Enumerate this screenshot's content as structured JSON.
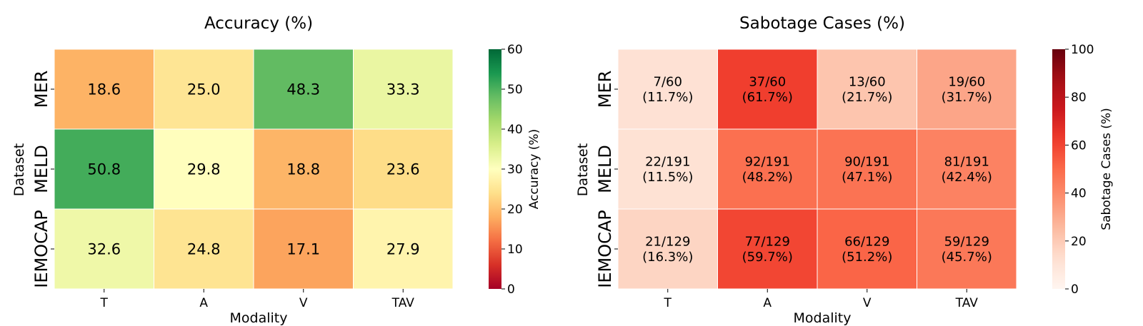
{
  "chart_data": [
    {
      "type": "heatmap",
      "title": "Accuracy (%)",
      "xlabel": "Modality",
      "ylabel": "Dataset",
      "x_categories": [
        "T",
        "A",
        "V",
        "TAV"
      ],
      "y_categories": [
        "MER",
        "MELD",
        "IEMOCAP"
      ],
      "values": [
        [
          18.6,
          25.0,
          48.3,
          33.3
        ],
        [
          50.8,
          29.8,
          18.8,
          23.6
        ],
        [
          32.6,
          24.8,
          17.1,
          27.9
        ]
      ],
      "cell_labels": [
        [
          "18.6",
          "25.0",
          "48.3",
          "33.3"
        ],
        [
          "50.8",
          "29.8",
          "18.8",
          "23.6"
        ],
        [
          "32.6",
          "24.8",
          "17.1",
          "27.9"
        ]
      ],
      "colormap": "RdYlGn",
      "colorbar": {
        "label": "Accuracy (%)",
        "range": [
          0,
          60
        ],
        "ticks": [
          0,
          10,
          20,
          30,
          40,
          50,
          60
        ]
      }
    },
    {
      "type": "heatmap",
      "title": "Sabotage Cases (%)",
      "xlabel": "Modality",
      "ylabel": "Dataset",
      "x_categories": [
        "T",
        "A",
        "V",
        "TAV"
      ],
      "y_categories": [
        "MER",
        "MELD",
        "IEMOCAP"
      ],
      "values": [
        [
          11.7,
          61.7,
          21.7,
          31.7
        ],
        [
          11.5,
          48.2,
          47.1,
          42.4
        ],
        [
          16.3,
          59.7,
          51.2,
          45.7
        ]
      ],
      "cell_labels": [
        [
          "7/60\n(11.7%)",
          "37/60\n(61.7%)",
          "13/60\n(21.7%)",
          "19/60\n(31.7%)"
        ],
        [
          "22/191\n(11.5%)",
          "92/191\n(48.2%)",
          "90/191\n(47.1%)",
          "81/191\n(42.4%)"
        ],
        [
          "21/129\n(16.3%)",
          "77/129\n(59.7%)",
          "66/129\n(51.2%)",
          "59/129\n(45.7%)"
        ]
      ],
      "colormap": "Reds",
      "colorbar": {
        "label": "Sabotage Cases (%)",
        "range": [
          0,
          100
        ],
        "ticks": [
          0,
          20,
          40,
          60,
          80,
          100
        ]
      }
    }
  ]
}
